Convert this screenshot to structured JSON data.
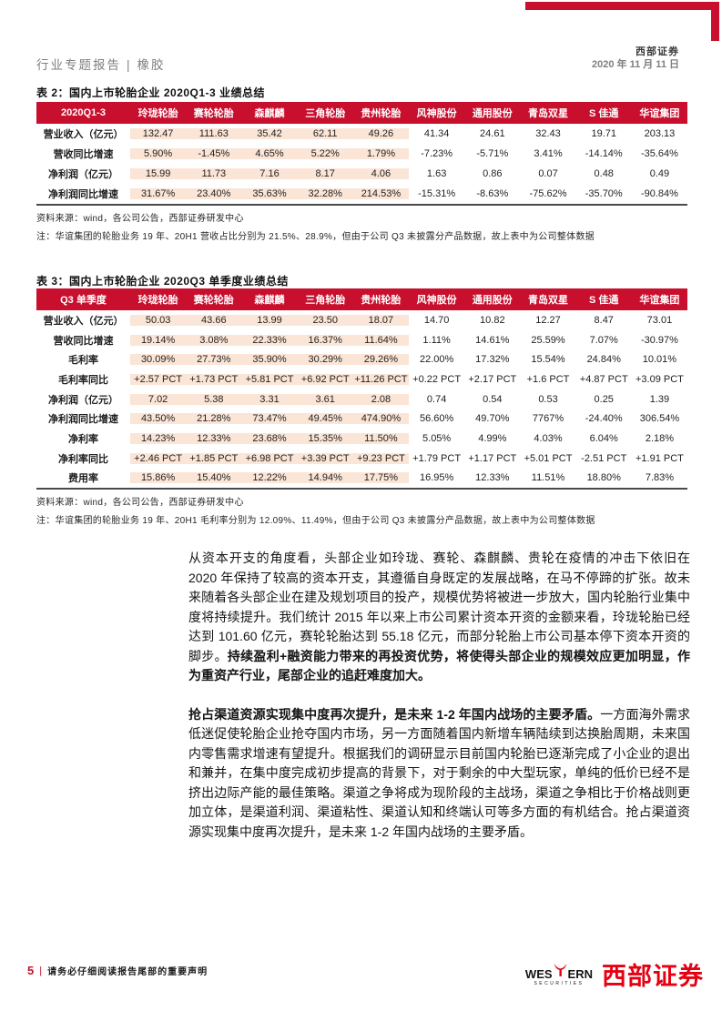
{
  "header": {
    "report_type": "行业专题报告",
    "separator": "|",
    "sector": "橡胶",
    "brand": "西部证券",
    "date": "2020 年 11 月 11 日"
  },
  "table2": {
    "title": "表 2：国内上市轮胎企业 2020Q1-3 业绩总结",
    "corner": "2020Q1-3",
    "columns": [
      "玲珑轮胎",
      "赛轮轮胎",
      "森麒麟",
      "三角轮胎",
      "贵州轮胎",
      "风神股份",
      "通用股份",
      "青岛双星",
      "S 佳通",
      "华谊集团"
    ],
    "rows": [
      {
        "label": "营业收入（亿元）",
        "values": [
          "132.47",
          "111.63",
          "35.42",
          "62.11",
          "49.26",
          "41.34",
          "24.61",
          "32.43",
          "19.71",
          "203.13"
        ]
      },
      {
        "label": "营收同比增速",
        "values": [
          "5.90%",
          "-1.45%",
          "4.65%",
          "5.22%",
          "1.79%",
          "-7.23%",
          "-5.71%",
          "3.41%",
          "-14.14%",
          "-35.64%"
        ]
      },
      {
        "label": "净利润（亿元）",
        "values": [
          "15.99",
          "11.73",
          "7.16",
          "8.17",
          "4.06",
          "1.63",
          "0.86",
          "0.07",
          "0.48",
          "0.49"
        ]
      },
      {
        "label": "净利润同比增速",
        "values": [
          "31.67%",
          "23.40%",
          "35.63%",
          "32.28%",
          "214.53%",
          "-15.31%",
          "-8.63%",
          "-75.62%",
          "-35.70%",
          "-90.84%"
        ]
      }
    ],
    "source": "资料来源：wind，各公司公告，西部证券研发中心",
    "note": "注：华谊集团的轮胎业务 19 年、20H1 营收占比分别为 21.5%、28.9%，但由于公司 Q3 未披露分产品数据，故上表中为公司整体数据"
  },
  "table3": {
    "title": "表 3：国内上市轮胎企业 2020Q3 单季度业绩总结",
    "corner": "Q3 单季度",
    "columns": [
      "玲珑轮胎",
      "赛轮轮胎",
      "森麒麟",
      "三角轮胎",
      "贵州轮胎",
      "风神股份",
      "通用股份",
      "青岛双星",
      "S 佳通",
      "华谊集团"
    ],
    "rows": [
      {
        "label": "营业收入（亿元）",
        "values": [
          "50.03",
          "43.66",
          "13.99",
          "23.50",
          "18.07",
          "14.70",
          "10.82",
          "12.27",
          "8.47",
          "73.01"
        ]
      },
      {
        "label": "营收同比增速",
        "values": [
          "19.14%",
          "3.08%",
          "22.33%",
          "16.37%",
          "11.64%",
          "1.11%",
          "14.61%",
          "25.59%",
          "7.07%",
          "-30.97%"
        ]
      },
      {
        "label": "毛利率",
        "values": [
          "30.09%",
          "27.73%",
          "35.90%",
          "30.29%",
          "29.26%",
          "22.00%",
          "17.32%",
          "15.54%",
          "24.84%",
          "10.01%"
        ]
      },
      {
        "label": "毛利率同比",
        "values": [
          "+2.57 PCT",
          "+1.73 PCT",
          "+5.81 PCT",
          "+6.92 PCT",
          "+11.26 PCT",
          "+0.22 PCT",
          "+2.17 PCT",
          "+1.6 PCT",
          "+4.87 PCT",
          "+3.09 PCT"
        ]
      },
      {
        "label": "净利润（亿元）",
        "values": [
          "7.02",
          "5.38",
          "3.31",
          "3.61",
          "2.08",
          "0.74",
          "0.54",
          "0.53",
          "0.25",
          "1.39"
        ]
      },
      {
        "label": "净利润同比增速",
        "values": [
          "43.50%",
          "21.28%",
          "73.47%",
          "49.45%",
          "474.90%",
          "56.60%",
          "49.70%",
          "7767%",
          "-24.40%",
          "306.54%"
        ]
      },
      {
        "label": "净利率",
        "values": [
          "14.23%",
          "12.33%",
          "23.68%",
          "15.35%",
          "11.50%",
          "5.05%",
          "4.99%",
          "4.03%",
          "6.04%",
          "2.18%"
        ]
      },
      {
        "label": "净利率同比",
        "values": [
          "+2.46 PCT",
          "+1.85 PCT",
          "+6.98 PCT",
          "+3.39 PCT",
          "+9.23 PCT",
          "+1.79 PCT",
          "+1.17 PCT",
          "+5.01 PCT",
          "-2.51 PCT",
          "+1.91 PCT"
        ]
      },
      {
        "label": "费用率",
        "values": [
          "15.86%",
          "15.40%",
          "12.22%",
          "14.94%",
          "17.75%",
          "16.95%",
          "12.33%",
          "11.51%",
          "18.80%",
          "7.83%"
        ]
      }
    ],
    "source": "资料来源：wind，各公司公告，西部证券研发中心",
    "note": "注：华谊集团的轮胎业务 19 年、20H1 毛利率分别为 12.09%、11.49%，但由于公司 Q3 未披露分产品数据，故上表中为公司整体数据"
  },
  "paragraphs": [
    {
      "segments": [
        {
          "bold": false,
          "text": "从资本开支的角度看，头部企业如玲珑、赛轮、森麒麟、贵轮在疫情的冲击下依旧在 2020 年保持了较高的资本开支，其遵循自身既定的发展战略，在马不停蹄的扩张。故未来随着各头部企业在建及规划项目的投产，规模优势将被进一步放大，国内轮胎行业集中度将持续提升。我们统计 2015 年以来上市公司累计资本开资的金额来看，玲珑轮胎已经达到 101.60 亿元，赛轮轮胎达到 55.18 亿元，而部分轮胎上市公司基本停下资本开资的脚步。"
        },
        {
          "bold": true,
          "text": "持续盈利+融资能力带来的再投资优势，将使得头部企业的规模效应更加明显，作为重资产行业，尾部企业的追赶难度加大。"
        }
      ]
    },
    {
      "segments": [
        {
          "bold": true,
          "text": "抢占渠道资源实现集中度再次提升，是未来 1-2 年国内战场的主要矛盾。"
        },
        {
          "bold": false,
          "text": "一方面海外需求低迷促使轮胎企业抢夺国内市场，另一方面随着国内新增车辆陆续到达换胎周期，未来国内零售需求增速有望提升。根据我们的调研显示目前国内轮胎已逐渐完成了小企业的退出和兼并，在集中度完成初步提高的背景下，对于剩余的中大型玩家，单纯的低价已经不是挤出边际产能的最佳策略。渠道之争将成为现阶段的主战场，渠道之争相比于价格战则更加立体，是渠道利润、渠道粘性、渠道认知和终端认可等多方面的有机结合。抢占渠道资源实现集中度再次提升，是未来 1-2 年国内战场的主要矛盾。"
        }
      ]
    }
  ],
  "footer": {
    "page_number": "5",
    "divider": "|",
    "disclaimer": "请务必仔细阅读报告尾部的重要声明",
    "logo_en": "WESTERN",
    "logo_sub": "SECURITIES",
    "logo_cn": "西部证券"
  },
  "colors": {
    "brand_red": "#C8102E",
    "logo_red": "#E60012",
    "highlight_peach": "#FBE5D6",
    "gray_text": "#7f7f7f"
  }
}
